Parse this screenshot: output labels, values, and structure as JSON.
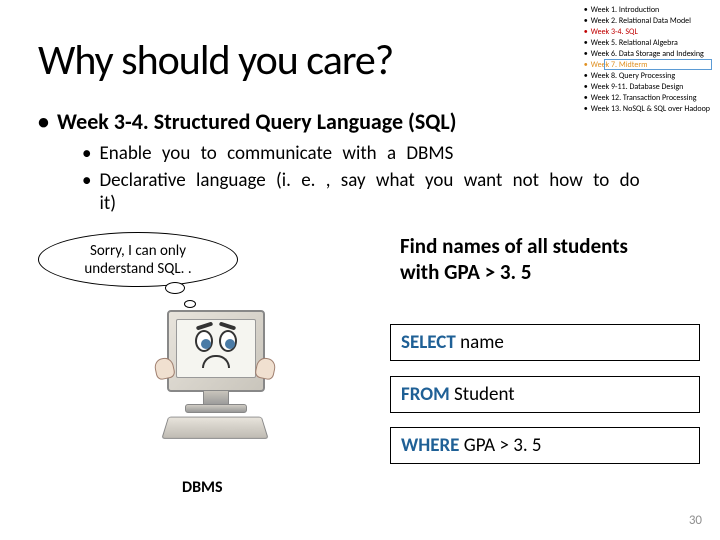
{
  "title": "Why should you care?",
  "toc": [
    {
      "text": "Week 1. Introduction",
      "cls": ""
    },
    {
      "text": "Week 2. Relational Data Model",
      "cls": ""
    },
    {
      "text": "Week 3-4. SQL",
      "cls": "red"
    },
    {
      "text": "Week 5. Relational Algebra",
      "cls": ""
    },
    {
      "text": "Week 6. Data Storage and Indexing",
      "cls": ""
    },
    {
      "text": "Week 7. Midterm",
      "cls": "orange"
    },
    {
      "text": "Week 8. Query Processing",
      "cls": ""
    },
    {
      "text": "Week 9-11. Database Design",
      "cls": ""
    },
    {
      "text": "Week 12. Transaction Processing",
      "cls": ""
    },
    {
      "text": "Week 13. NoSQL & SQL over Hadoop",
      "cls": ""
    }
  ],
  "main_bullet": "Week 3-4. Structured Query Language (SQL)",
  "sub_bullets": [
    "Enable you to communicate with a DBMS",
    "Declarative language (i. e. , say what you want not how to do it)"
  ],
  "bubble_line1": "Sorry, I can only",
  "bubble_line2": "understand SQL. .",
  "query_title_line1": "Find names of all students",
  "query_title_line2": "with GPA > 3. 5",
  "sql": {
    "select_kw": "SELECT",
    "select_rest": " name",
    "from_kw": "FROM",
    "from_rest": " Student",
    "where_kw": "WHERE",
    "where_rest": " GPA > 3. 5"
  },
  "dbms_label": "DBMS",
  "page_number": "30"
}
